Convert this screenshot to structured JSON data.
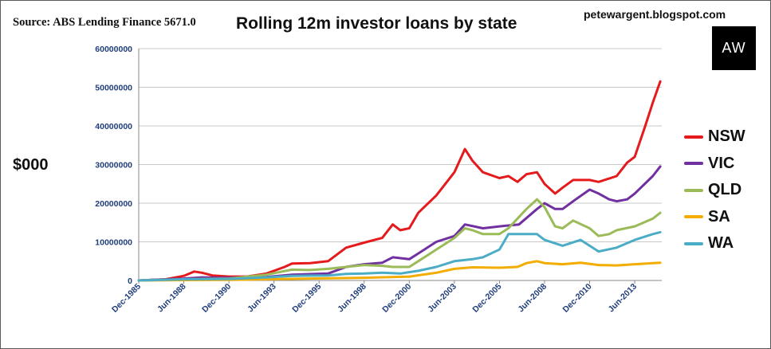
{
  "header": {
    "source": "Source: ABS Lending Finance 5671.0",
    "title": "Rolling 12m investor loans by state",
    "blog": "petewargent.blogspot.com",
    "logo_text": "AW"
  },
  "y_unit_label": "$000",
  "chart_data": {
    "type": "line",
    "title": "Rolling 12m investor loans by state",
    "ylabel": "$000",
    "xlabel": "",
    "ylim": [
      0,
      60000000
    ],
    "y_ticks": [
      "0",
      "10000000",
      "20000000",
      "30000000",
      "40000000",
      "50000000",
      "60000000"
    ],
    "x_range": [
      "1985-12",
      "2014-12"
    ],
    "x_ticks": [
      "Dec-1985",
      "Jun-1988",
      "Dec-1990",
      "Jun-1993",
      "Dec-1995",
      "Jun-1998",
      "Dec-2000",
      "Jun-2003",
      "Dec-2005",
      "Jun-2008",
      "Dec-2010",
      "Jun-2013"
    ],
    "grid": "horizontal",
    "legend_position": "right",
    "series": [
      {
        "name": "NSW",
        "color": "#e41a1c",
        "points": [
          [
            "1985-12",
            0
          ],
          [
            "1987-06",
            300000
          ],
          [
            "1988-06",
            1200000
          ],
          [
            "1989-01",
            2300000
          ],
          [
            "1989-06",
            2000000
          ],
          [
            "1990-01",
            1300000
          ],
          [
            "1990-12",
            1000000
          ],
          [
            "1991-12",
            1000000
          ],
          [
            "1993-01",
            1800000
          ],
          [
            "1994-01",
            3500000
          ],
          [
            "1994-06",
            4400000
          ],
          [
            "1995-06",
            4500000
          ],
          [
            "1996-06",
            5000000
          ],
          [
            "1997-06",
            8500000
          ],
          [
            "1998-06",
            9800000
          ],
          [
            "1999-06",
            11000000
          ],
          [
            "2000-01",
            14500000
          ],
          [
            "2000-06",
            13000000
          ],
          [
            "2000-12",
            13500000
          ],
          [
            "2001-06",
            17500000
          ],
          [
            "2002-06",
            22000000
          ],
          [
            "2003-06",
            28000000
          ],
          [
            "2004-01",
            34000000
          ],
          [
            "2004-06",
            31000000
          ],
          [
            "2005-01",
            28000000
          ],
          [
            "2005-12",
            26500000
          ],
          [
            "2006-06",
            27000000
          ],
          [
            "2006-12",
            25500000
          ],
          [
            "2007-06",
            27500000
          ],
          [
            "2008-01",
            28000000
          ],
          [
            "2008-06",
            25000000
          ],
          [
            "2009-01",
            22500000
          ],
          [
            "2009-06",
            24000000
          ],
          [
            "2010-01",
            26000000
          ],
          [
            "2010-12",
            26000000
          ],
          [
            "2011-06",
            25500000
          ],
          [
            "2012-06",
            27000000
          ],
          [
            "2013-01",
            30500000
          ],
          [
            "2013-06",
            32000000
          ],
          [
            "2014-01",
            40000000
          ],
          [
            "2014-06",
            46000000
          ],
          [
            "2014-11",
            51500000
          ]
        ]
      },
      {
        "name": "VIC",
        "color": "#7030a0",
        "points": [
          [
            "1985-12",
            0
          ],
          [
            "1988-06",
            500000
          ],
          [
            "1989-06",
            800000
          ],
          [
            "1990-12",
            700000
          ],
          [
            "1993-01",
            900000
          ],
          [
            "1994-06",
            1500000
          ],
          [
            "1996-06",
            1800000
          ],
          [
            "1997-06",
            3500000
          ],
          [
            "1998-06",
            4200000
          ],
          [
            "1999-06",
            4600000
          ],
          [
            "2000-01",
            6000000
          ],
          [
            "2000-12",
            5500000
          ],
          [
            "2001-06",
            7000000
          ],
          [
            "2002-06",
            10000000
          ],
          [
            "2003-06",
            11500000
          ],
          [
            "2004-01",
            14500000
          ],
          [
            "2005-01",
            13500000
          ],
          [
            "2005-12",
            14000000
          ],
          [
            "2007-01",
            14500000
          ],
          [
            "2008-01",
            18500000
          ],
          [
            "2008-06",
            20000000
          ],
          [
            "2009-01",
            18500000
          ],
          [
            "2009-06",
            18500000
          ],
          [
            "2010-01",
            20500000
          ],
          [
            "2010-12",
            23500000
          ],
          [
            "2011-06",
            22500000
          ],
          [
            "2012-01",
            21000000
          ],
          [
            "2012-06",
            20500000
          ],
          [
            "2013-01",
            21000000
          ],
          [
            "2013-06",
            22500000
          ],
          [
            "2014-06",
            27000000
          ],
          [
            "2014-11",
            29500000
          ]
        ]
      },
      {
        "name": "QLD",
        "color": "#9bbb59",
        "points": [
          [
            "1985-12",
            0
          ],
          [
            "1988-06",
            300000
          ],
          [
            "1990-12",
            500000
          ],
          [
            "1993-01",
            1500000
          ],
          [
            "1994-06",
            2800000
          ],
          [
            "1995-06",
            2700000
          ],
          [
            "1996-06",
            3000000
          ],
          [
            "1997-06",
            3500000
          ],
          [
            "1998-06",
            4000000
          ],
          [
            "1999-06",
            3800000
          ],
          [
            "2000-01",
            3500000
          ],
          [
            "2000-12",
            3500000
          ],
          [
            "2001-06",
            5000000
          ],
          [
            "2002-06",
            8000000
          ],
          [
            "2003-06",
            11000000
          ],
          [
            "2004-01",
            13500000
          ],
          [
            "2004-06",
            13000000
          ],
          [
            "2005-01",
            12000000
          ],
          [
            "2005-12",
            12000000
          ],
          [
            "2006-06",
            13500000
          ],
          [
            "2007-06",
            18500000
          ],
          [
            "2008-01",
            21000000
          ],
          [
            "2008-06",
            19000000
          ],
          [
            "2009-01",
            14000000
          ],
          [
            "2009-06",
            13500000
          ],
          [
            "2010-01",
            15500000
          ],
          [
            "2010-12",
            13500000
          ],
          [
            "2011-06",
            11500000
          ],
          [
            "2012-01",
            12000000
          ],
          [
            "2012-06",
            13000000
          ],
          [
            "2013-06",
            14000000
          ],
          [
            "2014-06",
            16000000
          ],
          [
            "2014-11",
            17500000
          ]
        ]
      },
      {
        "name": "SA",
        "color": "#f2ad00",
        "points": [
          [
            "1985-12",
            0
          ],
          [
            "1988-06",
            100000
          ],
          [
            "1990-12",
            150000
          ],
          [
            "1993-01",
            300000
          ],
          [
            "1995-06",
            500000
          ],
          [
            "1998-06",
            700000
          ],
          [
            "2000-12",
            1000000
          ],
          [
            "2002-06",
            2000000
          ],
          [
            "2003-06",
            3000000
          ],
          [
            "2004-06",
            3400000
          ],
          [
            "2005-12",
            3300000
          ],
          [
            "2006-12",
            3500000
          ],
          [
            "2007-06",
            4500000
          ],
          [
            "2008-01",
            5000000
          ],
          [
            "2008-06",
            4500000
          ],
          [
            "2009-06",
            4200000
          ],
          [
            "2010-06",
            4600000
          ],
          [
            "2011-06",
            4000000
          ],
          [
            "2012-06",
            3900000
          ],
          [
            "2013-06",
            4200000
          ],
          [
            "2014-06",
            4500000
          ],
          [
            "2014-11",
            4600000
          ]
        ]
      },
      {
        "name": "WA",
        "color": "#4bacc6",
        "points": [
          [
            "1985-12",
            0
          ],
          [
            "1988-06",
            300000
          ],
          [
            "1990-12",
            400000
          ],
          [
            "1993-01",
            800000
          ],
          [
            "1994-06",
            1200000
          ],
          [
            "1996-06",
            1300000
          ],
          [
            "1997-06",
            1700000
          ],
          [
            "1998-06",
            1800000
          ],
          [
            "1999-06",
            2000000
          ],
          [
            "2000-06",
            1800000
          ],
          [
            "2001-06",
            2500000
          ],
          [
            "2002-06",
            3500000
          ],
          [
            "2003-06",
            5000000
          ],
          [
            "2004-06",
            5500000
          ],
          [
            "2005-01",
            6000000
          ],
          [
            "2005-12",
            8000000
          ],
          [
            "2006-06",
            12000000
          ],
          [
            "2007-06",
            12000000
          ],
          [
            "2008-01",
            12000000
          ],
          [
            "2008-06",
            10500000
          ],
          [
            "2009-06",
            9000000
          ],
          [
            "2010-06",
            10500000
          ],
          [
            "2011-06",
            7500000
          ],
          [
            "2012-06",
            8500000
          ],
          [
            "2013-06",
            10500000
          ],
          [
            "2014-06",
            12000000
          ],
          [
            "2014-11",
            12500000
          ]
        ]
      }
    ]
  }
}
